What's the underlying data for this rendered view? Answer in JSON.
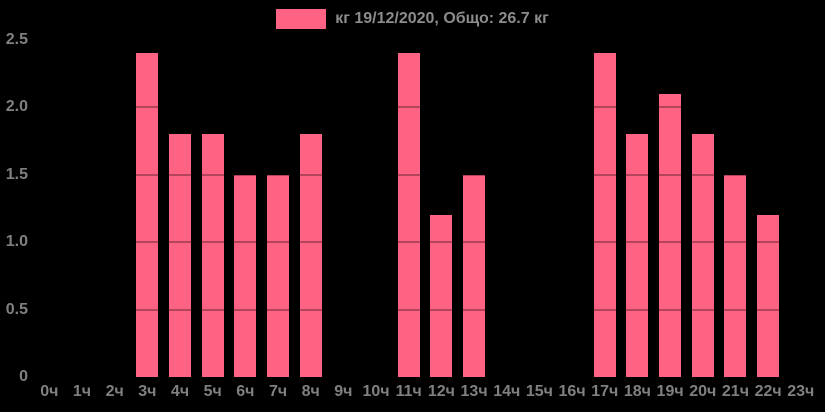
{
  "legend": {
    "label": "кг 19/12/2020, Общо: 26.7 кг",
    "series_name": "кг 19/12/2020",
    "total_label": "Общо: 26.7 кг"
  },
  "colors": {
    "background": "#000000",
    "bar": "#ff6384",
    "grid_over_bar": "rgba(0,0,0,0.3)",
    "legend_text": "#8c8c8c",
    "tick_text": "#808080"
  },
  "chart_data": {
    "type": "bar",
    "title": "",
    "categories": [
      "0ч",
      "1ч",
      "2ч",
      "3ч",
      "4ч",
      "5ч",
      "6ч",
      "7ч",
      "8ч",
      "9ч",
      "10ч",
      "11ч",
      "12ч",
      "13ч",
      "14ч",
      "15ч",
      "16ч",
      "17ч",
      "18ч",
      "19ч",
      "20ч",
      "21ч",
      "22ч",
      "23ч"
    ],
    "values": [
      0,
      0,
      0,
      2.4,
      1.8,
      1.8,
      1.5,
      1.5,
      1.8,
      0,
      0,
      2.4,
      1.2,
      1.5,
      0,
      0,
      0,
      2.4,
      1.8,
      2.1,
      1.8,
      1.5,
      1.2,
      0
    ],
    "series": [
      {
        "name": "кг 19/12/2020",
        "values": [
          0,
          0,
          0,
          2.4,
          1.8,
          1.8,
          1.5,
          1.5,
          1.8,
          0,
          0,
          2.4,
          1.2,
          1.5,
          0,
          0,
          0,
          2.4,
          1.8,
          2.1,
          1.8,
          1.5,
          1.2,
          0
        ]
      }
    ],
    "total": 26.7,
    "unit": "кг",
    "date": "19/12/2020",
    "xlabel": "",
    "ylabel": "",
    "ylim": [
      0,
      2.5
    ],
    "y_ticks": [
      "0",
      "0.5",
      "1.0",
      "1.5",
      "2.0",
      "2.5"
    ],
    "grid": "horizontal lines drawn over bars only (dark overlay)",
    "legend_position": "top-center"
  }
}
